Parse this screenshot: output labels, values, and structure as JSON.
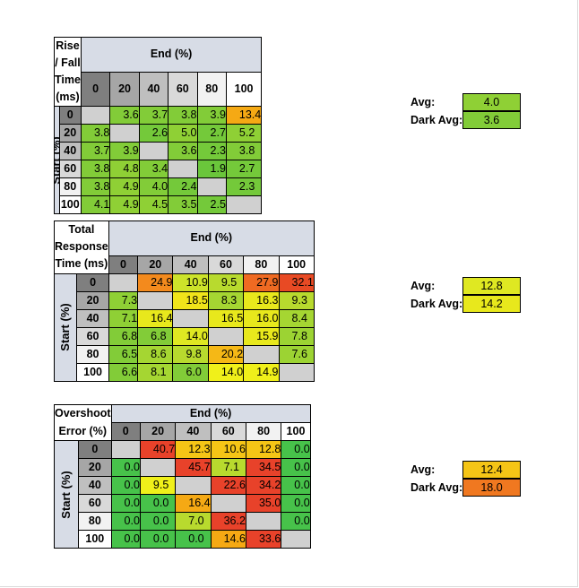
{
  "headers": [
    "0",
    "20",
    "40",
    "60",
    "80",
    "100"
  ],
  "header_colors": [
    "#7f7f7f",
    "#a6a6a6",
    "#bfbfbf",
    "#d9d9d9",
    "#f2f2f2",
    "#ffffff"
  ],
  "end_label": "End (%)",
  "start_label": "Start (%)",
  "empty_color": "#d0d0d0",
  "chart_data": [
    {
      "type": "table",
      "title_line1": "Rise / Fall",
      "title_line2": "Time (ms)",
      "rows": [
        [
          "",
          "3.6",
          "3.7",
          "3.8",
          "3.9",
          "13.4"
        ],
        [
          "3.8",
          "",
          "2.6",
          "5.0",
          "2.7",
          "5.2"
        ],
        [
          "3.7",
          "3.9",
          "",
          "3.6",
          "2.3",
          "3.8"
        ],
        [
          "3.8",
          "4.8",
          "3.4",
          "",
          "1.9",
          "2.7"
        ],
        [
          "3.8",
          "4.9",
          "4.0",
          "2.4",
          "",
          "2.3"
        ],
        [
          "4.1",
          "4.9",
          "4.5",
          "3.5",
          "2.5",
          ""
        ]
      ],
      "colors": [
        [
          null,
          "#82cc38",
          "#82cc38",
          "#82cc38",
          "#82cc38",
          "#f5a914"
        ],
        [
          "#82cc38",
          null,
          "#74c93a",
          "#8fd035",
          "#74c93a",
          "#8fd035"
        ],
        [
          "#82cc38",
          "#82cc38",
          null,
          "#82cc38",
          "#74c93a",
          "#82cc38"
        ],
        [
          "#82cc38",
          "#8fd035",
          "#82cc38",
          null,
          "#6ac63b",
          "#74c93a"
        ],
        [
          "#82cc38",
          "#8fd035",
          "#82cc38",
          "#74c93a",
          null,
          "#74c93a"
        ],
        [
          "#82cc38",
          "#8fd035",
          "#8fd035",
          "#82cc38",
          "#74c93a",
          null
        ]
      ],
      "avg_label": "Avg:",
      "avg_value": "4.0",
      "avg_color": "#8fd035",
      "dark_avg_label": "Dark Avg:",
      "dark_avg_value": "3.6",
      "dark_avg_color": "#82cc38"
    },
    {
      "type": "table",
      "title_line1": "Total Response",
      "title_line2": "Time (ms)",
      "rows": [
        [
          "",
          "24.9",
          "10.9",
          "9.5",
          "27.9",
          "32.1"
        ],
        [
          "7.3",
          "",
          "18.5",
          "8.3",
          "16.3",
          "9.3"
        ],
        [
          "7.1",
          "16.4",
          "",
          "16.5",
          "16.0",
          "8.4"
        ],
        [
          "6.8",
          "6.8",
          "14.0",
          "",
          "15.9",
          "7.8"
        ],
        [
          "6.5",
          "8.6",
          "9.8",
          "20.2",
          "",
          "7.6"
        ],
        [
          "6.6",
          "8.1",
          "6.0",
          "14.0",
          "14.9",
          ""
        ]
      ],
      "colors": [
        [
          null,
          "#f38a1d",
          "#cde32a",
          "#b8da2e",
          "#ef6a22",
          "#e84a24"
        ],
        [
          "#8fd035",
          null,
          "#f0e41a",
          "#a5d632",
          "#e8e81c",
          "#b8da2e"
        ],
        [
          "#8fd035",
          "#e8e81c",
          null,
          "#e8e81c",
          "#e8e81c",
          "#a5d632"
        ],
        [
          "#82cc38",
          "#82cc38",
          "#dfe822",
          null,
          "#e8e81c",
          "#9cd333"
        ],
        [
          "#82cc38",
          "#a5d632",
          "#b8da2e",
          "#f5b816",
          null,
          "#9cd333"
        ],
        [
          "#82cc38",
          "#a5d632",
          "#82cc38",
          "#f0f01a",
          "#f0f01a",
          null
        ]
      ],
      "avg_label": "Avg:",
      "avg_value": "12.8",
      "avg_color": "#dfe822",
      "dark_avg_label": "Dark Avg:",
      "dark_avg_value": "14.2",
      "dark_avg_color": "#e8e81c"
    },
    {
      "type": "table",
      "title_line1": "Overshoot",
      "title_line2": "Error (%)",
      "rows": [
        [
          "",
          "40.7",
          "12.3",
          "10.6",
          "12.8",
          "0.0"
        ],
        [
          "0.0",
          "",
          "45.7",
          "7.1",
          "34.5",
          "0.0"
        ],
        [
          "0.0",
          "9.5",
          "",
          "22.6",
          "34.2",
          "0.0"
        ],
        [
          "0.0",
          "0.0",
          "16.4",
          "",
          "35.0",
          "0.0"
        ],
        [
          "0.0",
          "0.0",
          "7.0",
          "36.2",
          "",
          "0.0"
        ],
        [
          "0.0",
          "0.0",
          "0.0",
          "14.6",
          "33.6",
          ""
        ]
      ],
      "colors": [
        [
          null,
          "#e8422a",
          "#f5c516",
          "#f5c516",
          "#f5c516",
          "#47c24a"
        ],
        [
          "#47c24a",
          null,
          "#e8422a",
          "#b8da2e",
          "#e8422a",
          "#47c24a"
        ],
        [
          "#47c24a",
          "#f0f01a",
          null,
          "#e8422a",
          "#e8422a",
          "#47c24a"
        ],
        [
          "#47c24a",
          "#47c24a",
          "#f5a914",
          null,
          "#e8422a",
          "#47c24a"
        ],
        [
          "#47c24a",
          "#47c24a",
          "#b8da2e",
          "#e8422a",
          null,
          "#47c24a"
        ],
        [
          "#47c24a",
          "#47c24a",
          "#47c24a",
          "#f5a914",
          "#e8422a",
          null
        ]
      ],
      "avg_label": "Avg:",
      "avg_value": "12.4",
      "avg_color": "#f5c516",
      "dark_avg_label": "Dark Avg:",
      "dark_avg_value": "18.0",
      "dark_avg_color": "#f07820"
    }
  ]
}
